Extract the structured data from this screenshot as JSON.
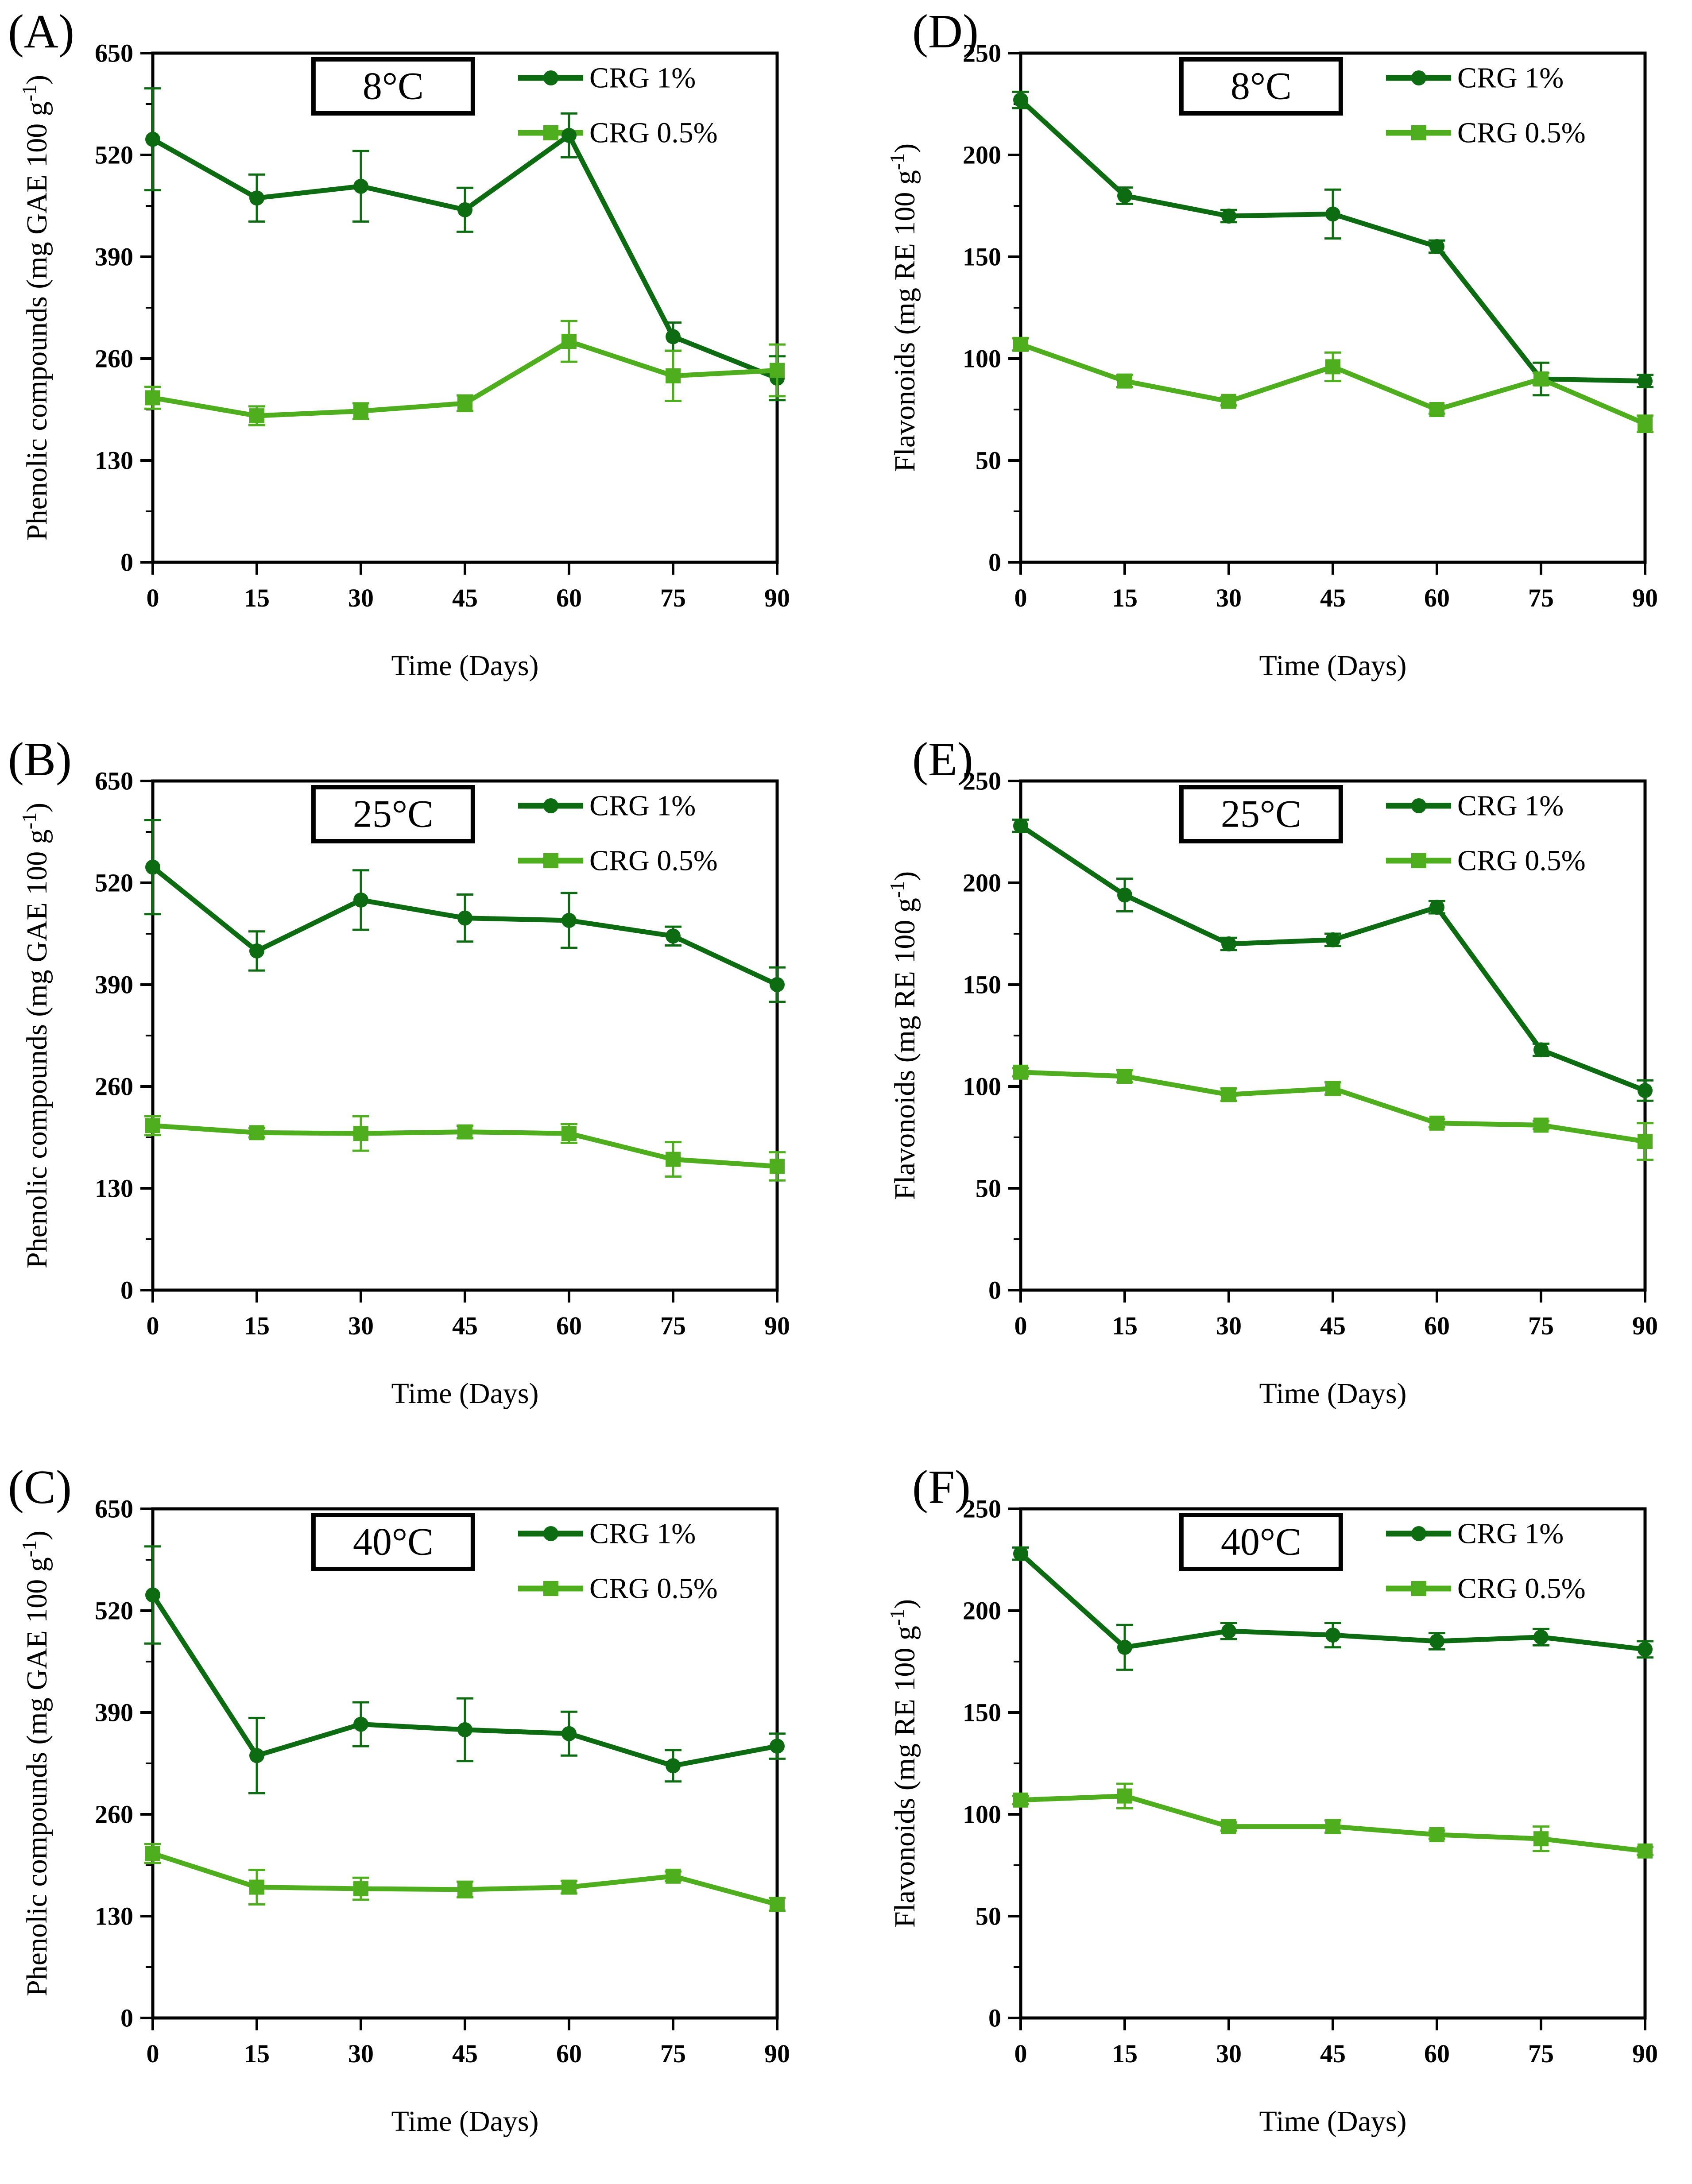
{
  "figure": {
    "description": "Six-panel line figure: phenolic compounds (left column) and flavonoids (right column) during 90 days storage at 8, 25 and 40 degrees C",
    "x_axis_label": "Time (Days)",
    "legend_entries": [
      "CRG 1%",
      "CRG 0.5%"
    ],
    "colors": {
      "crg_1": "#0d6b12",
      "crg_05": "#4fae1e",
      "axis": "#000000",
      "background": "#ffffff"
    }
  },
  "chart_data": [
    {
      "panel": "(A)",
      "type": "line",
      "temperature_label": "8°C",
      "xlabel": "Time (Days)",
      "ylabel": "Phenolic compounds (mg GAE 100 g⁻¹)",
      "xlim": [
        0,
        90
      ],
      "ylim": [
        0,
        650
      ],
      "x_ticks": [
        0,
        15,
        30,
        45,
        60,
        75,
        90
      ],
      "y_ticks": [
        0,
        130,
        260,
        390,
        520,
        650
      ],
      "grid": false,
      "legend_position": "top-right",
      "x": [
        0,
        15,
        30,
        45,
        60,
        75,
        90
      ],
      "series": [
        {
          "name": "CRG 1%",
          "marker": "circle",
          "color": "#0d6b12",
          "values": [
            540,
            465,
            480,
            450,
            545,
            288,
            235
          ],
          "errors": [
            65,
            30,
            45,
            28,
            28,
            18,
            28
          ]
        },
        {
          "name": "CRG 0.5%",
          "marker": "square",
          "color": "#4fae1e",
          "values": [
            210,
            187,
            193,
            203,
            282,
            238,
            245
          ],
          "errors": [
            14,
            12,
            10,
            10,
            26,
            32,
            33
          ]
        }
      ]
    },
    {
      "panel": "(D)",
      "type": "line",
      "temperature_label": "8°C",
      "xlabel": "Time (Days)",
      "ylabel": "Flavonoids (mg RE 100 g⁻¹)",
      "xlim": [
        0,
        90
      ],
      "ylim": [
        0,
        250
      ],
      "x_ticks": [
        0,
        15,
        30,
        45,
        60,
        75,
        90
      ],
      "y_ticks": [
        0,
        50,
        100,
        150,
        200,
        250
      ],
      "grid": false,
      "legend_position": "top-right",
      "x": [
        0,
        15,
        30,
        45,
        60,
        75,
        90
      ],
      "series": [
        {
          "name": "CRG 1%",
          "marker": "circle",
          "color": "#0d6b12",
          "values": [
            227,
            180,
            170,
            171,
            155,
            90,
            89
          ],
          "errors": [
            4,
            4,
            3,
            12,
            3,
            8,
            3
          ]
        },
        {
          "name": "CRG 0.5%",
          "marker": "square",
          "color": "#4fae1e",
          "values": [
            107,
            89,
            79,
            96,
            75,
            90,
            68
          ],
          "errors": [
            3,
            3,
            2,
            7,
            2,
            3,
            4
          ]
        }
      ]
    },
    {
      "panel": "(B)",
      "type": "line",
      "temperature_label": "25°C",
      "xlabel": "Time (Days)",
      "ylabel": "Phenolic compounds (mg GAE 100 g⁻¹)",
      "xlim": [
        0,
        90
      ],
      "ylim": [
        0,
        650
      ],
      "x_ticks": [
        0,
        15,
        30,
        45,
        60,
        75,
        90
      ],
      "y_ticks": [
        0,
        130,
        260,
        390,
        520,
        650
      ],
      "grid": false,
      "legend_position": "top-right",
      "x": [
        0,
        15,
        30,
        45,
        60,
        75,
        90
      ],
      "series": [
        {
          "name": "CRG 1%",
          "marker": "circle",
          "color": "#0d6b12",
          "values": [
            540,
            433,
            498,
            475,
            472,
            452,
            390
          ],
          "errors": [
            60,
            25,
            38,
            30,
            35,
            12,
            22
          ]
        },
        {
          "name": "CRG 0.5%",
          "marker": "square",
          "color": "#4fae1e",
          "values": [
            210,
            201,
            200,
            202,
            200,
            167,
            158
          ],
          "errors": [
            12,
            6,
            22,
            8,
            12,
            22,
            18
          ]
        }
      ]
    },
    {
      "panel": "(E)",
      "type": "line",
      "temperature_label": "25°C",
      "xlabel": "Time (Days)",
      "ylabel": "Flavonoids (mg RE 100 g⁻¹)",
      "xlim": [
        0,
        90
      ],
      "ylim": [
        0,
        250
      ],
      "x_ticks": [
        0,
        15,
        30,
        45,
        60,
        75,
        90
      ],
      "y_ticks": [
        0,
        50,
        100,
        150,
        200,
        250
      ],
      "grid": false,
      "legend_position": "top-right",
      "x": [
        0,
        15,
        30,
        45,
        60,
        75,
        90
      ],
      "series": [
        {
          "name": "CRG 1%",
          "marker": "circle",
          "color": "#0d6b12",
          "values": [
            228,
            194,
            170,
            172,
            188,
            118,
            98
          ],
          "errors": [
            3,
            8,
            3,
            3,
            3,
            3,
            5
          ]
        },
        {
          "name": "CRG 0.5%",
          "marker": "square",
          "color": "#4fae1e",
          "values": [
            107,
            105,
            96,
            99,
            82,
            81,
            73
          ],
          "errors": [
            2,
            3,
            3,
            3,
            2,
            2,
            9
          ]
        }
      ]
    },
    {
      "panel": "(C)",
      "type": "line",
      "temperature_label": "40°C",
      "xlabel": "Time (Days)",
      "ylabel": "Phenolic compounds (mg GAE 100 g⁻¹)",
      "xlim": [
        0,
        90
      ],
      "ylim": [
        0,
        650
      ],
      "x_ticks": [
        0,
        15,
        30,
        45,
        60,
        75,
        90
      ],
      "y_ticks": [
        0,
        130,
        260,
        390,
        520,
        650
      ],
      "grid": false,
      "legend_position": "top-right",
      "x": [
        0,
        15,
        30,
        45,
        60,
        75,
        90
      ],
      "series": [
        {
          "name": "CRG 1%",
          "marker": "circle",
          "color": "#0d6b12",
          "values": [
            540,
            335,
            375,
            368,
            363,
            322,
            347
          ],
          "errors": [
            62,
            48,
            28,
            40,
            28,
            20,
            16
          ]
        },
        {
          "name": "CRG 0.5%",
          "marker": "square",
          "color": "#4fae1e",
          "values": [
            210,
            167,
            165,
            164,
            167,
            181,
            145
          ],
          "errors": [
            12,
            22,
            14,
            10,
            8,
            6,
            8
          ]
        }
      ]
    },
    {
      "panel": "(F)",
      "type": "line",
      "temperature_label": "40°C",
      "xlabel": "Time (Days)",
      "ylabel": "Flavonoids (mg RE 100 g⁻¹)",
      "xlim": [
        0,
        90
      ],
      "ylim": [
        0,
        250
      ],
      "x_ticks": [
        0,
        15,
        30,
        45,
        60,
        75,
        90
      ],
      "y_ticks": [
        0,
        50,
        100,
        150,
        200,
        250
      ],
      "grid": false,
      "legend_position": "top-right",
      "x": [
        0,
        15,
        30,
        45,
        60,
        75,
        90
      ],
      "series": [
        {
          "name": "CRG 1%",
          "marker": "circle",
          "color": "#0d6b12",
          "values": [
            228,
            182,
            190,
            188,
            185,
            187,
            181
          ],
          "errors": [
            3,
            11,
            4,
            6,
            4,
            4,
            4
          ]
        },
        {
          "name": "CRG 0.5%",
          "marker": "square",
          "color": "#4fae1e",
          "values": [
            107,
            109,
            94,
            94,
            90,
            88,
            82
          ],
          "errors": [
            2,
            6,
            2,
            3,
            2,
            6,
            2
          ]
        }
      ]
    }
  ]
}
